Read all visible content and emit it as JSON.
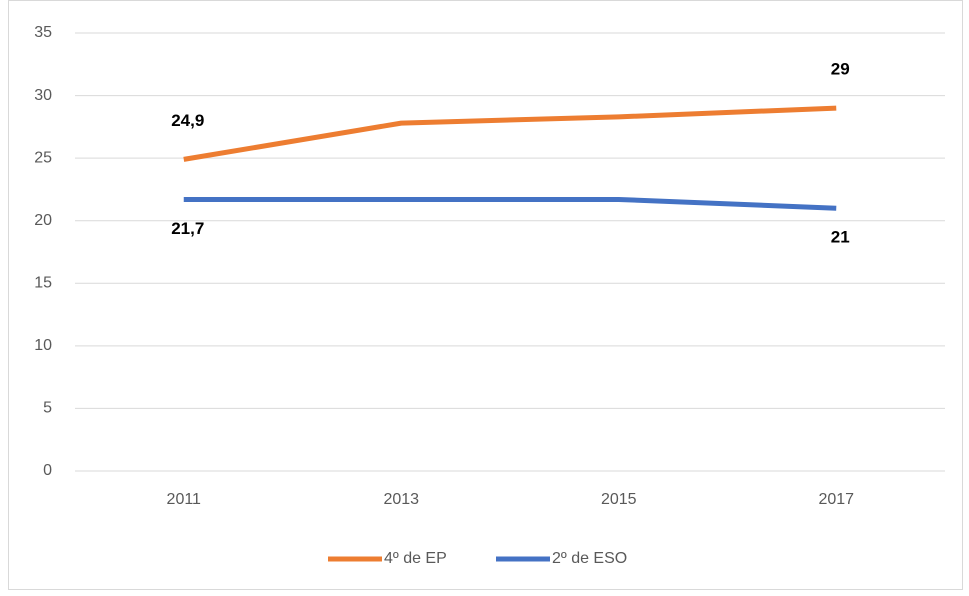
{
  "chart_data": {
    "type": "line",
    "categories": [
      "2011",
      "2013",
      "2015",
      "2017"
    ],
    "series": [
      {
        "name": "4º de EP",
        "color": "#ed7d31",
        "values": [
          24.9,
          27.8,
          28.3,
          29
        ],
        "value_labels": [
          "24,9",
          null,
          null,
          "29"
        ]
      },
      {
        "name": "2º de ESO",
        "color": "#4472c4",
        "values": [
          21.7,
          21.7,
          21.7,
          21
        ],
        "value_labels": [
          "21,7",
          null,
          null,
          "21"
        ]
      }
    ],
    "ylim": [
      0,
      35
    ],
    "yticks": [
      0,
      5,
      10,
      15,
      20,
      25,
      30,
      35
    ],
    "grid": true,
    "legend": "bottom"
  }
}
